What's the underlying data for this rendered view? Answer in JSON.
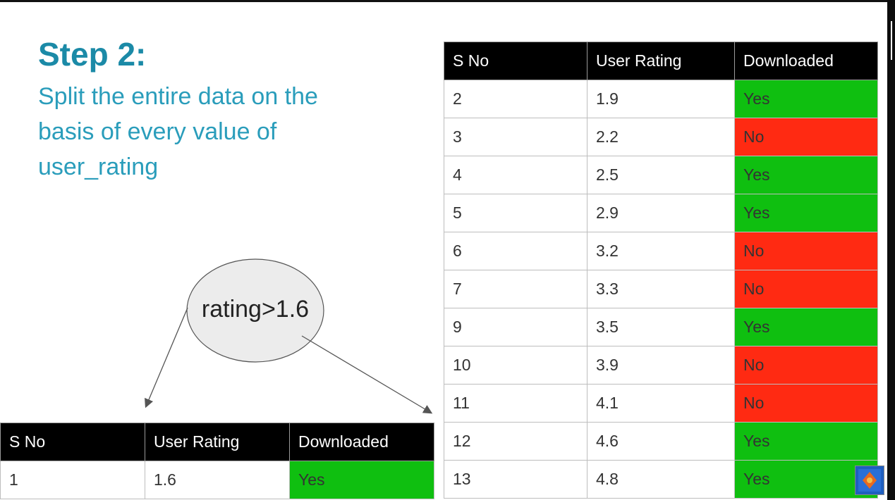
{
  "slide": {
    "title": "Step 2:",
    "description": "Split the entire data on the basis of every value of user_rating"
  },
  "node": {
    "label": "rating>1.6"
  },
  "columns": [
    "S No",
    "User Rating",
    "Downloaded"
  ],
  "left_table": {
    "rows": [
      {
        "sno": "1",
        "rating": "1.6",
        "downloaded": "Yes"
      }
    ]
  },
  "right_table": {
    "rows": [
      {
        "sno": "2",
        "rating": "1.9",
        "downloaded": "Yes"
      },
      {
        "sno": "3",
        "rating": "2.2",
        "downloaded": "No"
      },
      {
        "sno": "4",
        "rating": "2.5",
        "downloaded": "Yes"
      },
      {
        "sno": "5",
        "rating": "2.9",
        "downloaded": "Yes"
      },
      {
        "sno": "6",
        "rating": "3.2",
        "downloaded": "No"
      },
      {
        "sno": "7",
        "rating": "3.3",
        "downloaded": "No"
      },
      {
        "sno": "9",
        "rating": "3.5",
        "downloaded": "Yes"
      },
      {
        "sno": "10",
        "rating": "3.9",
        "downloaded": "No"
      },
      {
        "sno": "11",
        "rating": "4.1",
        "downloaded": "No"
      },
      {
        "sno": "12",
        "rating": "4.6",
        "downloaded": "Yes"
      },
      {
        "sno": "13",
        "rating": "4.8",
        "downloaded": "Yes"
      }
    ]
  },
  "colors": {
    "yes": "#0fbf10",
    "no": "#ff2a12",
    "title": "#1b8aa7",
    "header_bg": "#000000"
  },
  "icons": {
    "corner_logo": "channel-logo-icon"
  }
}
